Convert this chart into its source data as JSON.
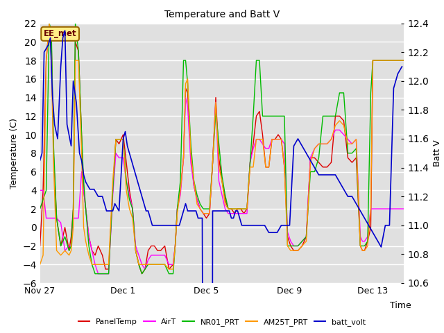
{
  "title": "Temperature and Batt V",
  "xlabel": "Time",
  "ylabel_left": "Temperature (C)",
  "ylabel_right": "Batt V",
  "annotation": "EE_met",
  "ylim_left": [
    -6,
    22
  ],
  "ylim_right": [
    10.6,
    12.4
  ],
  "xtick_labels": [
    "Nov 27",
    "Dec 1",
    "Dec 5",
    "Dec 9",
    "Dec 13"
  ],
  "xtick_positions": [
    0,
    4,
    8,
    12,
    16
  ],
  "background_color": "#e0e0e0",
  "legend_items": [
    {
      "label": "PanelTemp",
      "color": "#dd0000"
    },
    {
      "label": "AirT",
      "color": "#ff00ff"
    },
    {
      "label": "NR01_PRT",
      "color": "#00bb00"
    },
    {
      "label": "AM25T_PRT",
      "color": "#ff9900"
    },
    {
      "label": "batt_volt",
      "color": "#0000cc"
    }
  ],
  "temp_series": {
    "order": [
      "PanelTemp",
      "AirT",
      "NR01_PRT",
      "AM25T_PRT"
    ],
    "PanelTemp": {
      "color": "#dd0000",
      "x": [
        0.0,
        0.15,
        0.3,
        0.45,
        0.55,
        0.65,
        0.8,
        1.0,
        1.2,
        1.4,
        1.5,
        1.6,
        1.7,
        1.85,
        2.0,
        2.1,
        2.2,
        2.35,
        2.5,
        2.65,
        2.8,
        3.0,
        3.15,
        3.3,
        3.5,
        3.65,
        3.8,
        4.0,
        4.15,
        4.3,
        4.45,
        4.6,
        4.75,
        4.9,
        5.05,
        5.2,
        5.35,
        5.5,
        5.65,
        5.8,
        6.0,
        6.2,
        6.4,
        6.5,
        6.6,
        6.75,
        6.9,
        7.0,
        7.1,
        7.25,
        7.4,
        7.55,
        7.7,
        7.85,
        8.0,
        8.15,
        8.3,
        8.45,
        8.6,
        8.75,
        8.9,
        9.05,
        9.2,
        9.35,
        9.5,
        9.65,
        9.8,
        9.95,
        10.1,
        10.25,
        10.4,
        10.55,
        10.7,
        10.85,
        11.0,
        11.15,
        11.3,
        11.45,
        11.6,
        11.75,
        11.9,
        12.05,
        12.2,
        12.4,
        12.6,
        12.8,
        13.0,
        13.2,
        13.4,
        13.6,
        13.8,
        14.0,
        14.2,
        14.4,
        14.6,
        14.8,
        15.0,
        15.2,
        15.4,
        15.5,
        15.6,
        15.75,
        15.9,
        16.0,
        16.15,
        16.3,
        16.5,
        16.7,
        16.9,
        17.1,
        17.3,
        17.5
      ],
      "y": [
        -2.0,
        4.0,
        18.0,
        22.0,
        20.0,
        8.0,
        1.0,
        -2.0,
        0.0,
        -2.5,
        -1.0,
        2.0,
        20.0,
        19.0,
        10.0,
        4.0,
        2.0,
        -1.0,
        -2.5,
        -3.0,
        -2.0,
        -3.0,
        -4.5,
        -4.5,
        4.0,
        9.5,
        9.0,
        10.0,
        7.0,
        4.0,
        2.0,
        -2.5,
        -4.0,
        -5.0,
        -4.5,
        -2.5,
        -2.0,
        -2.0,
        -2.5,
        -2.5,
        -2.0,
        -4.5,
        -4.0,
        -2.0,
        2.0,
        4.0,
        7.5,
        15.0,
        14.5,
        8.0,
        4.5,
        3.0,
        2.0,
        1.5,
        1.0,
        1.5,
        7.0,
        14.0,
        7.5,
        5.0,
        3.0,
        2.0,
        2.0,
        1.5,
        2.0,
        2.0,
        1.5,
        2.0,
        7.0,
        9.0,
        12.0,
        12.5,
        10.0,
        6.5,
        6.5,
        9.5,
        9.5,
        10.0,
        9.5,
        6.5,
        -1.0,
        -2.0,
        -2.5,
        -2.5,
        -2.0,
        -1.0,
        7.5,
        7.5,
        7.0,
        6.5,
        6.5,
        7.0,
        12.0,
        12.0,
        11.5,
        7.5,
        7.0,
        7.5,
        -2.0,
        -2.5,
        -2.5,
        -1.5,
        0.0,
        18.0,
        18.0,
        18.0,
        18.0,
        18.0,
        18.0,
        18.0,
        18.0,
        18.0
      ]
    },
    "AirT": {
      "color": "#ff00ff",
      "x": [
        0.0,
        0.15,
        0.3,
        0.45,
        0.55,
        0.65,
        0.8,
        1.0,
        1.2,
        1.4,
        1.5,
        1.6,
        1.7,
        1.85,
        2.0,
        2.1,
        2.2,
        2.35,
        2.5,
        2.65,
        2.8,
        3.0,
        3.15,
        3.3,
        3.5,
        3.65,
        3.8,
        4.0,
        4.15,
        4.3,
        4.45,
        4.6,
        4.75,
        4.9,
        5.05,
        5.2,
        5.35,
        5.5,
        5.65,
        5.8,
        6.0,
        6.2,
        6.4,
        6.5,
        6.6,
        6.75,
        6.9,
        7.0,
        7.1,
        7.25,
        7.4,
        7.55,
        7.7,
        7.85,
        8.0,
        8.15,
        8.3,
        8.45,
        8.6,
        8.75,
        8.9,
        9.05,
        9.2,
        9.35,
        9.5,
        9.65,
        9.8,
        9.95,
        10.1,
        10.25,
        10.4,
        10.55,
        10.7,
        10.85,
        11.0,
        11.15,
        11.3,
        11.45,
        11.6,
        11.75,
        11.9,
        12.05,
        12.2,
        12.4,
        12.6,
        12.8,
        13.0,
        13.2,
        13.4,
        13.6,
        13.8,
        14.0,
        14.2,
        14.4,
        14.6,
        14.8,
        15.0,
        15.2,
        15.4,
        15.5,
        15.6,
        15.75,
        15.9,
        16.0,
        16.15,
        16.3,
        16.5,
        16.7,
        16.9,
        17.1,
        17.3,
        17.5
      ],
      "y": [
        4.0,
        4.0,
        1.0,
        1.0,
        1.0,
        1.0,
        1.0,
        0.5,
        -2.5,
        -2.0,
        -2.0,
        1.0,
        1.0,
        1.0,
        6.0,
        4.0,
        2.0,
        -1.0,
        -2.5,
        -4.0,
        -5.0,
        -5.0,
        -5.0,
        -5.0,
        3.5,
        8.0,
        7.5,
        7.5,
        5.0,
        3.5,
        2.0,
        -2.0,
        -3.0,
        -4.0,
        -4.5,
        -3.5,
        -3.0,
        -3.0,
        -3.0,
        -3.0,
        -3.0,
        -4.0,
        -4.0,
        -2.0,
        2.0,
        3.5,
        7.5,
        14.0,
        13.0,
        7.0,
        4.5,
        3.0,
        2.0,
        1.5,
        1.5,
        1.5,
        7.0,
        13.5,
        5.0,
        3.5,
        2.0,
        1.5,
        1.5,
        1.5,
        1.5,
        1.5,
        1.5,
        1.5,
        7.0,
        8.5,
        9.5,
        9.5,
        9.0,
        8.5,
        8.5,
        9.5,
        9.5,
        9.5,
        9.5,
        9.0,
        -0.5,
        -1.5,
        -2.0,
        -2.0,
        -1.5,
        -1.0,
        7.5,
        8.5,
        9.0,
        9.0,
        9.0,
        9.5,
        10.5,
        10.5,
        10.0,
        9.5,
        9.0,
        9.5,
        -1.0,
        -1.5,
        -1.5,
        -1.0,
        2.0,
        2.0,
        2.0,
        2.0,
        2.0,
        2.0,
        2.0,
        2.0,
        2.0,
        2.0
      ]
    },
    "NR01_PRT": {
      "color": "#00bb00",
      "x": [
        0.0,
        0.15,
        0.3,
        0.45,
        0.55,
        0.65,
        0.8,
        1.0,
        1.2,
        1.4,
        1.5,
        1.6,
        1.7,
        1.85,
        2.0,
        2.1,
        2.2,
        2.35,
        2.5,
        2.65,
        2.8,
        3.0,
        3.15,
        3.3,
        3.5,
        3.65,
        3.8,
        4.0,
        4.15,
        4.3,
        4.45,
        4.6,
        4.75,
        4.9,
        5.05,
        5.2,
        5.35,
        5.5,
        5.65,
        5.8,
        6.0,
        6.2,
        6.4,
        6.5,
        6.6,
        6.75,
        6.9,
        7.0,
        7.1,
        7.25,
        7.4,
        7.55,
        7.7,
        7.85,
        8.0,
        8.15,
        8.3,
        8.45,
        8.6,
        8.75,
        8.9,
        9.05,
        9.2,
        9.35,
        9.5,
        9.65,
        9.8,
        9.95,
        10.1,
        10.25,
        10.4,
        10.55,
        10.7,
        10.85,
        11.0,
        11.15,
        11.3,
        11.45,
        11.6,
        11.75,
        11.9,
        12.05,
        12.2,
        12.4,
        12.6,
        12.8,
        13.0,
        13.2,
        13.4,
        13.6,
        13.8,
        14.0,
        14.2,
        14.4,
        14.6,
        14.8,
        15.0,
        15.2,
        15.4,
        15.5,
        15.6,
        15.75,
        15.9,
        16.0,
        16.15,
        16.3,
        16.5,
        16.7,
        16.9,
        17.1,
        17.3,
        17.5
      ],
      "y": [
        2.0,
        3.0,
        4.0,
        22.0,
        21.0,
        9.0,
        1.0,
        -2.0,
        -1.0,
        -2.5,
        -2.0,
        2.0,
        22.0,
        19.0,
        10.0,
        5.0,
        2.0,
        -2.0,
        -4.0,
        -5.0,
        -5.0,
        -5.0,
        -5.0,
        -5.0,
        4.0,
        9.5,
        9.5,
        9.5,
        5.0,
        3.0,
        2.0,
        -2.5,
        -4.0,
        -5.0,
        -4.5,
        -4.0,
        -4.0,
        -4.0,
        -4.0,
        -4.0,
        -4.0,
        -5.0,
        -5.0,
        -2.0,
        2.0,
        5.0,
        18.0,
        18.0,
        15.5,
        9.0,
        5.0,
        3.5,
        2.5,
        2.0,
        2.0,
        2.0,
        7.0,
        12.5,
        9.0,
        5.5,
        3.5,
        2.0,
        2.0,
        2.0,
        2.0,
        2.0,
        2.0,
        2.0,
        7.0,
        12.0,
        18.0,
        18.0,
        12.0,
        12.0,
        12.0,
        12.0,
        12.0,
        12.0,
        12.0,
        12.0,
        -2.0,
        -2.0,
        -2.0,
        -2.0,
        -1.5,
        -1.0,
        6.0,
        6.0,
        7.5,
        12.0,
        12.0,
        12.0,
        12.0,
        14.5,
        14.5,
        8.0,
        8.0,
        8.5,
        -2.0,
        -2.0,
        -2.0,
        -1.5,
        14.5,
        18.0,
        18.0,
        18.0,
        18.0,
        18.0,
        18.0,
        18.0,
        18.0,
        18.0
      ]
    },
    "AM25T_PRT": {
      "color": "#ff9900",
      "x": [
        0.0,
        0.15,
        0.3,
        0.45,
        0.55,
        0.65,
        0.8,
        1.0,
        1.2,
        1.4,
        1.5,
        1.6,
        1.7,
        1.85,
        2.0,
        2.1,
        2.2,
        2.35,
        2.5,
        2.65,
        2.8,
        3.0,
        3.15,
        3.3,
        3.5,
        3.65,
        3.8,
        4.0,
        4.15,
        4.3,
        4.45,
        4.6,
        4.75,
        4.9,
        5.05,
        5.2,
        5.35,
        5.5,
        5.65,
        5.8,
        6.0,
        6.2,
        6.4,
        6.5,
        6.6,
        6.75,
        6.9,
        7.0,
        7.1,
        7.25,
        7.4,
        7.55,
        7.7,
        7.85,
        8.0,
        8.15,
        8.3,
        8.45,
        8.6,
        8.75,
        8.9,
        9.05,
        9.2,
        9.35,
        9.5,
        9.65,
        9.8,
        9.95,
        10.1,
        10.25,
        10.4,
        10.55,
        10.7,
        10.85,
        11.0,
        11.15,
        11.3,
        11.45,
        11.6,
        11.75,
        11.9,
        12.05,
        12.2,
        12.4,
        12.6,
        12.8,
        13.0,
        13.2,
        13.4,
        13.6,
        13.8,
        14.0,
        14.2,
        14.4,
        14.6,
        14.8,
        15.0,
        15.2,
        15.4,
        15.5,
        15.6,
        15.75,
        15.9,
        16.0,
        16.15,
        16.3,
        16.5,
        16.7,
        16.9,
        17.1,
        17.3,
        17.5
      ],
      "y": [
        -4.0,
        -3.0,
        18.0,
        22.0,
        18.0,
        7.0,
        -2.5,
        -3.0,
        -2.5,
        -3.0,
        -2.5,
        0.0,
        18.0,
        18.0,
        8.0,
        0.0,
        -1.5,
        -3.0,
        -4.0,
        -4.0,
        -4.0,
        -4.0,
        -4.0,
        -4.0,
        5.0,
        9.5,
        9.5,
        9.5,
        4.0,
        2.0,
        1.0,
        -2.5,
        -4.0,
        -4.0,
        -4.0,
        -4.0,
        -4.0,
        -4.0,
        -4.0,
        -4.0,
        -4.0,
        -4.5,
        -4.5,
        -2.0,
        1.5,
        4.0,
        7.5,
        15.5,
        16.0,
        8.0,
        5.0,
        2.5,
        2.0,
        1.5,
        1.5,
        1.5,
        7.0,
        13.5,
        6.5,
        5.0,
        2.5,
        2.0,
        2.0,
        2.0,
        2.0,
        2.0,
        2.0,
        2.0,
        6.5,
        6.5,
        9.5,
        9.5,
        9.5,
        6.5,
        6.5,
        9.5,
        9.5,
        9.5,
        9.5,
        6.5,
        -2.0,
        -2.5,
        -2.5,
        -2.5,
        -2.0,
        -1.5,
        7.0,
        8.5,
        9.0,
        9.0,
        9.0,
        9.5,
        11.0,
        11.5,
        11.0,
        9.0,
        9.0,
        9.5,
        -2.0,
        -2.5,
        -2.5,
        -2.0,
        2.0,
        18.0,
        18.0,
        18.0,
        18.0,
        18.0,
        18.0,
        18.0,
        18.0,
        18.0
      ]
    }
  },
  "batt_volt": {
    "color": "#0000cc",
    "x": [
      0.0,
      0.1,
      0.2,
      0.4,
      0.5,
      0.6,
      0.7,
      0.85,
      1.0,
      1.1,
      1.2,
      1.3,
      1.5,
      1.6,
      1.75,
      1.9,
      2.0,
      2.1,
      2.2,
      2.4,
      2.6,
      2.8,
      3.0,
      3.1,
      3.2,
      3.5,
      3.6,
      3.8,
      4.0,
      4.1,
      4.2,
      4.3,
      4.4,
      4.5,
      4.6,
      4.7,
      4.8,
      5.0,
      5.1,
      5.2,
      5.3,
      5.4,
      5.5,
      5.6,
      5.7,
      5.8,
      5.9,
      6.0,
      6.1,
      6.2,
      6.3,
      6.5,
      6.6,
      6.7,
      7.0,
      7.1,
      7.2,
      7.3,
      7.4,
      7.5,
      7.6,
      7.7,
      7.8,
      8.0,
      8.1,
      8.2,
      8.3,
      8.4,
      8.5,
      8.6,
      8.7,
      8.8,
      9.0,
      9.1,
      9.2,
      9.3,
      9.4,
      9.5,
      9.6,
      9.7,
      9.8,
      9.9,
      10.0,
      10.2,
      10.4,
      10.6,
      10.8,
      11.0,
      11.2,
      11.4,
      11.6,
      11.8,
      12.0,
      12.2,
      12.4,
      12.6,
      12.8,
      13.0,
      13.2,
      13.4,
      13.6,
      13.8,
      14.0,
      14.2,
      14.4,
      14.6,
      14.8,
      15.0,
      15.2,
      15.4,
      15.6,
      15.8,
      16.0,
      16.2,
      16.4,
      16.6,
      16.8,
      17.0,
      17.2,
      17.4
    ],
    "y": [
      11.45,
      11.5,
      12.2,
      12.25,
      12.3,
      11.9,
      11.7,
      11.6,
      12.1,
      12.3,
      12.35,
      11.7,
      11.55,
      12.0,
      11.85,
      11.5,
      11.45,
      11.35,
      11.3,
      11.25,
      11.25,
      11.2,
      11.2,
      11.15,
      11.1,
      11.1,
      11.15,
      11.1,
      11.6,
      11.65,
      11.55,
      11.5,
      11.45,
      11.4,
      11.35,
      11.3,
      11.25,
      11.15,
      11.1,
      11.1,
      11.05,
      11.0,
      11.0,
      11.0,
      11.0,
      11.0,
      11.0,
      11.0,
      11.0,
      11.0,
      11.0,
      11.0,
      11.0,
      11.0,
      11.15,
      11.1,
      11.1,
      11.1,
      11.1,
      11.1,
      11.05,
      11.05,
      11.05,
      2.0,
      2.1,
      2.15,
      11.1,
      11.1,
      11.1,
      11.1,
      11.1,
      11.1,
      11.1,
      11.1,
      11.05,
      11.05,
      11.1,
      11.1,
      11.05,
      11.0,
      11.0,
      11.0,
      11.0,
      11.0,
      11.0,
      11.0,
      11.0,
      10.95,
      10.95,
      10.95,
      11.0,
      11.0,
      11.0,
      11.55,
      11.6,
      11.55,
      11.5,
      11.45,
      11.4,
      11.35,
      11.35,
      11.35,
      11.35,
      11.35,
      11.3,
      11.25,
      11.2,
      11.2,
      11.15,
      11.1,
      11.05,
      11.0,
      10.95,
      10.9,
      10.85,
      11.0,
      11.0,
      11.95,
      12.05,
      12.1
    ]
  }
}
